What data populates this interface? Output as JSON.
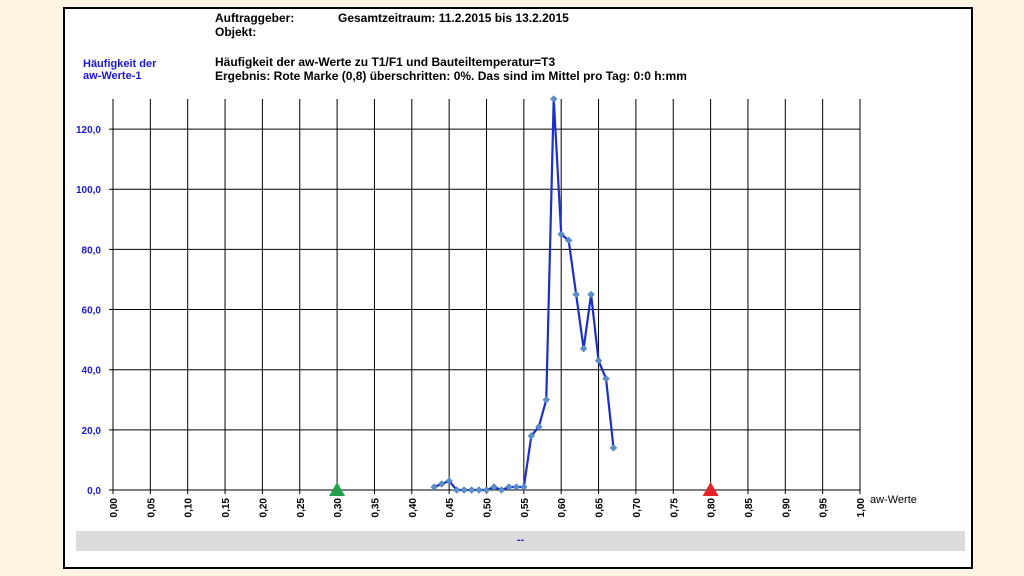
{
  "header": {
    "client_label": "Auftraggeber:",
    "period_label": "Gesamtzeitraum: 11.2.2015 bis 13.2.2015",
    "object_label": "Objekt:",
    "title": "Häufigkeit der aw-Werte zu T1/F1 und Bauteiltemperatur=T3",
    "result": "Ergebnis: Rote Marke (0,8) überschritten: 0%. Das sind im Mittel pro Tag: 0:0 h:mm"
  },
  "y_axis_title": [
    "Häufigkeit der",
    "aw-Werte-1"
  ],
  "footer": {
    "text": "--"
  },
  "colors": {
    "line": "#1a2fcc",
    "marker": "#5b8fc9",
    "green_marker": "#22a04a",
    "red_marker": "#e0242a",
    "axis_text": "#1a1acc"
  },
  "chart_data": {
    "type": "line",
    "xlabel": "aw-Werte",
    "ylabel": "Häufigkeit der aw-Werte-1",
    "xlim": [
      0,
      1
    ],
    "ylim": [
      0,
      130
    ],
    "x_ticks": [
      "0,00",
      "0,05",
      "0,10",
      "0,15",
      "0,20",
      "0,25",
      "0,30",
      "0,35",
      "0,40",
      "0,45",
      "0,50",
      "0,55",
      "0,60",
      "0,65",
      "0,70",
      "0,75",
      "0,80",
      "0,85",
      "0,90",
      "0,95",
      "1,00"
    ],
    "y_ticks": [
      "0,0",
      "20,0",
      "40,0",
      "60,0",
      "80,0",
      "100,0",
      "120,0"
    ],
    "y_tick_values": [
      0,
      20,
      40,
      60,
      80,
      100,
      120
    ],
    "grid": true,
    "series": [
      {
        "x": [
          0.43,
          0.44,
          0.45,
          0.46,
          0.47,
          0.48,
          0.49,
          0.5,
          0.51,
          0.52,
          0.53,
          0.54,
          0.55,
          0.56,
          0.57,
          0.58,
          0.59,
          0.6,
          0.61,
          0.62,
          0.63,
          0.64,
          0.65,
          0.66,
          0.67
        ],
        "y": [
          1,
          2,
          3,
          0,
          0,
          0,
          0,
          0,
          1,
          0,
          1,
          1,
          1,
          18,
          21,
          30,
          130,
          85,
          83,
          65,
          47,
          65,
          43,
          37,
          14
        ]
      }
    ],
    "markers": [
      {
        "x": 0.3,
        "color": "green",
        "shape": "triangle"
      },
      {
        "x": 0.8,
        "color": "red",
        "shape": "triangle"
      }
    ]
  }
}
